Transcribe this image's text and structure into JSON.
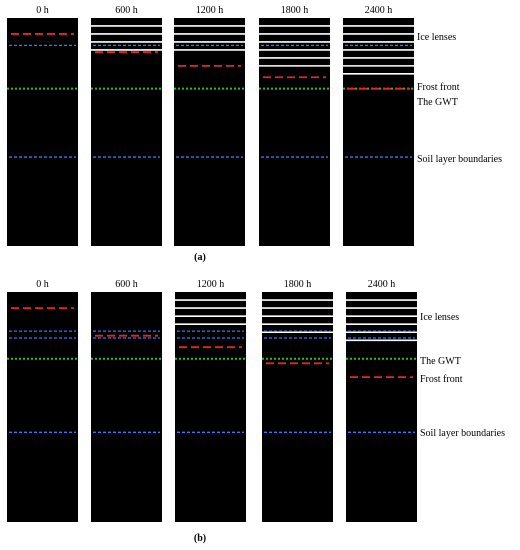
{
  "panels": [
    {
      "caption": "(a)",
      "columns": [
        {
          "time": "0 h",
          "ice_lenses": 0,
          "frost_front": 0.07
        },
        {
          "time": "600 h",
          "ice_lenses": 4,
          "frost_front": 0.15
        },
        {
          "time": "1200 h",
          "ice_lenses": 4,
          "frost_front": 0.21
        },
        {
          "time": "1800 h",
          "ice_lenses": 6,
          "frost_front": 0.26
        },
        {
          "time": "2400 h",
          "ice_lenses": 7,
          "frost_front": 0.31
        }
      ],
      "gwt": 0.31,
      "soil_boundaries": [
        0.12,
        0.61
      ],
      "labels": {
        "ice": "Ice lenses",
        "frost": "Frost front",
        "gwt": "The GWT",
        "soil": "Soil layer boundaries"
      },
      "label_order": [
        "ice",
        "frost",
        "gwt",
        "soil"
      ]
    },
    {
      "caption": "(b)",
      "columns": [
        {
          "time": "0 h",
          "ice_lenses": 0,
          "frost_front": 0.07
        },
        {
          "time": "600 h",
          "ice_lenses": 0,
          "frost_front": 0.19
        },
        {
          "time": "1200 h",
          "ice_lenses": 4,
          "frost_front": 0.24
        },
        {
          "time": "1800 h",
          "ice_lenses": 5,
          "frost_front": 0.31
        },
        {
          "time": "2400 h",
          "ice_lenses": 6,
          "frost_front": 0.37
        }
      ],
      "gwt": 0.29,
      "soil_boundaries": [
        0.17,
        0.2,
        0.61
      ],
      "labels": {
        "ice": "Ice lenses",
        "frost": "Frost front",
        "gwt": "The GWT",
        "soil": "Soil layer boundaries"
      },
      "label_order": [
        "ice",
        "gwt",
        "frost",
        "soil"
      ]
    }
  ],
  "colors": {
    "column_bg": "#000000",
    "ice": "#ffffff",
    "frost": "#e8242b",
    "gwt": "#22c41c",
    "soil": "#2f78ff"
  }
}
